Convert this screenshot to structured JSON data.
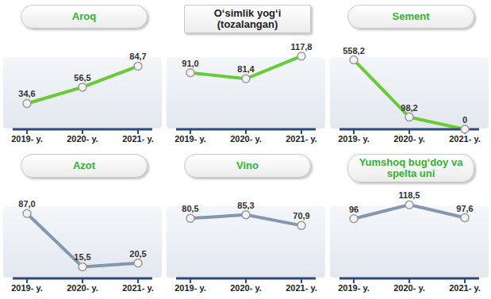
{
  "chart_data": [
    {
      "type": "line",
      "title": "Aroq",
      "categories": [
        "2019- y.",
        "2020- y.",
        "2021- y."
      ],
      "values": [
        34.6,
        56.5,
        84.7
      ],
      "value_labels": [
        "34,6",
        "56,5",
        "84,7"
      ],
      "color": "#66cc33",
      "marker": "circle",
      "data_labels": true,
      "tick_labels": "x"
    },
    {
      "type": "line",
      "title": "O‘simlik yog‘i (tozalangan)",
      "categories": [
        "2019- y.",
        "2020- y.",
        "2021- y."
      ],
      "values": [
        91.0,
        81.4,
        117.8
      ],
      "value_labels": [
        "91,0",
        "81,4",
        "117,8"
      ],
      "color": "#66cc33",
      "marker": "circle",
      "data_labels": true,
      "tick_labels": "x"
    },
    {
      "type": "line",
      "title": "Sement",
      "categories": [
        "2019- y.",
        "2020- y.",
        "2021- y."
      ],
      "values": [
        558.2,
        98.2,
        0
      ],
      "value_labels": [
        "558,2",
        "98,2",
        "0"
      ],
      "color": "#66cc33",
      "marker": "circle",
      "data_labels": true,
      "tick_labels": "x"
    },
    {
      "type": "line",
      "title": "Azot",
      "categories": [
        "2019- y.",
        "2020- y.",
        "2021- y."
      ],
      "values": [
        87.0,
        15.5,
        20.5
      ],
      "value_labels": [
        "87,0",
        "15,5",
        "20,5"
      ],
      "color": "#8497b0",
      "marker": "circle",
      "data_labels": true,
      "tick_labels": "x"
    },
    {
      "type": "line",
      "title": "Vino",
      "categories": [
        "2019- y.",
        "2020- y.",
        "2021- y."
      ],
      "values": [
        80.5,
        85.3,
        70.9
      ],
      "value_labels": [
        "80,5",
        "85,3",
        "70,9"
      ],
      "color": "#8497b0",
      "marker": "circle",
      "data_labels": true,
      "tick_labels": "x"
    },
    {
      "type": "line",
      "title": "Yumshoq bug‘doy va spelta uni",
      "categories": [
        "2019- y.",
        "2020- y.",
        "2021- y."
      ],
      "values": [
        96,
        118.5,
        97.6
      ],
      "value_labels": [
        "96",
        "118,5",
        "97,6"
      ],
      "color": "#8497b0",
      "marker": "circle",
      "data_labels": true,
      "tick_labels": "x"
    }
  ]
}
